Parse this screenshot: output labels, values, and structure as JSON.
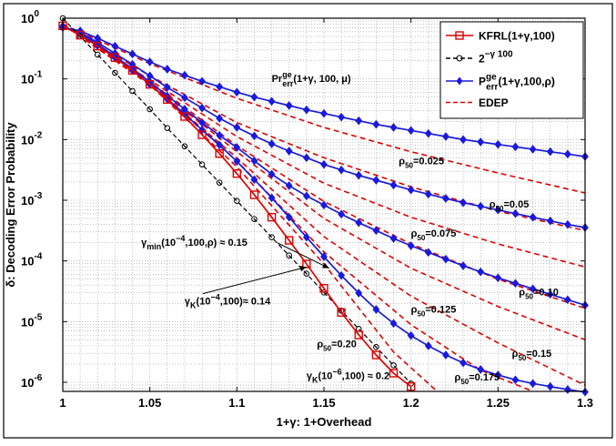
{
  "chart_data": {
    "type": "line",
    "xlabel": "1+γ: 1+Overhead",
    "ylabel": "δ: Decoding Error Probability",
    "xlim": [
      1.0,
      1.3
    ],
    "ylim_log10": [
      -6.15,
      0.0
    ],
    "y_scale": "log",
    "grid": true,
    "x_ticks": [
      "1",
      "1.05",
      "1.1",
      "1.15",
      "1.2",
      "1.25",
      "1.3"
    ],
    "y_ticks": [
      {
        "base": "10",
        "exp": "0"
      },
      {
        "base": "10",
        "exp": "-1"
      },
      {
        "base": "10",
        "exp": "-2"
      },
      {
        "base": "10",
        "exp": "-3"
      },
      {
        "base": "10",
        "exp": "-4"
      },
      {
        "base": "10",
        "exp": "-5"
      },
      {
        "base": "10",
        "exp": "-6"
      }
    ],
    "legend": {
      "position": "top-right",
      "entries": [
        {
          "label": "KFRL(1+γ,100)",
          "color": "#e00000",
          "marker": "square",
          "style": "solid"
        },
        {
          "label": "2",
          "sup": "−γ 100",
          "color": "#000000",
          "marker": "circle",
          "style": "dashed"
        },
        {
          "label": "P",
          "sup": "ge",
          "sub": "err",
          "tail": "(1+γ,100,ρ)",
          "color": "#1a1adb",
          "marker": "diamond",
          "style": "solid"
        },
        {
          "label": "EDEP",
          "color": "#e00000",
          "marker": "none",
          "style": "dashed"
        }
      ]
    },
    "series": [
      {
        "kind": "kfrl",
        "x": [
          1.0,
          1.01,
          1.02,
          1.03,
          1.04,
          1.05,
          1.06,
          1.07,
          1.08,
          1.09,
          1.1,
          1.11,
          1.12,
          1.13,
          1.14,
          1.15,
          1.16,
          1.17,
          1.18,
          1.19,
          1.2
        ],
        "log10_y": [
          -0.125,
          -0.28,
          -0.46,
          -0.65,
          -0.86,
          -1.09,
          -1.34,
          -1.62,
          -1.92,
          -2.23,
          -2.56,
          -2.91,
          -3.28,
          -3.66,
          -4.05,
          -4.45,
          -4.85,
          -5.22,
          -5.55,
          -5.85,
          -6.07
        ]
      },
      {
        "kind": "bound",
        "x": [
          1.0,
          1.01,
          1.02,
          1.03,
          1.04,
          1.05,
          1.06,
          1.07,
          1.08,
          1.09,
          1.1,
          1.11,
          1.12,
          1.13,
          1.14,
          1.15,
          1.16,
          1.17,
          1.18,
          1.19,
          1.2
        ],
        "log10_y": [
          0.0,
          -0.3,
          -0.6,
          -0.9,
          -1.2,
          -1.5,
          -1.81,
          -2.11,
          -2.41,
          -2.71,
          -3.01,
          -3.31,
          -3.61,
          -3.91,
          -4.21,
          -4.52,
          -4.82,
          -5.12,
          -5.42,
          -5.72,
          -6.02
        ]
      },
      {
        "kind": "pge",
        "rho": "0.025",
        "x": [
          1.0,
          1.01,
          1.02,
          1.03,
          1.04,
          1.05,
          1.06,
          1.07,
          1.08,
          1.09,
          1.1,
          1.11,
          1.12,
          1.13,
          1.14,
          1.15,
          1.16,
          1.17,
          1.18,
          1.19,
          1.2,
          1.21,
          1.22,
          1.23,
          1.24,
          1.25,
          1.26,
          1.27,
          1.28,
          1.29,
          1.3
        ],
        "log10_y": [
          -0.15,
          -0.21,
          -0.33,
          -0.46,
          -0.59,
          -0.72,
          -0.84,
          -0.94,
          -1.04,
          -1.13,
          -1.22,
          -1.3,
          -1.37,
          -1.44,
          -1.51,
          -1.57,
          -1.63,
          -1.69,
          -1.75,
          -1.8,
          -1.85,
          -1.9,
          -1.95,
          -2.0,
          -2.04,
          -2.08,
          -2.12,
          -2.16,
          -2.2,
          -2.24,
          -2.28
        ]
      },
      {
        "kind": "pge",
        "rho": "0.05",
        "x": [
          1.0,
          1.01,
          1.02,
          1.03,
          1.04,
          1.05,
          1.06,
          1.07,
          1.08,
          1.09,
          1.1,
          1.11,
          1.12,
          1.13,
          1.14,
          1.15,
          1.16,
          1.17,
          1.18,
          1.19,
          1.2,
          1.21,
          1.22,
          1.23,
          1.24,
          1.25,
          1.26,
          1.27,
          1.28,
          1.29,
          1.3
        ],
        "log10_y": [
          -0.15,
          -0.23,
          -0.4,
          -0.58,
          -0.76,
          -0.95,
          -1.14,
          -1.31,
          -1.48,
          -1.65,
          -1.8,
          -1.94,
          -2.07,
          -2.19,
          -2.3,
          -2.41,
          -2.5,
          -2.59,
          -2.67,
          -2.75,
          -2.83,
          -2.9,
          -2.97,
          -3.04,
          -3.1,
          -3.16,
          -3.22,
          -3.28,
          -3.34,
          -3.4,
          -3.45
        ]
      },
      {
        "kind": "pge",
        "rho": "0.10",
        "x": [
          1.0,
          1.01,
          1.02,
          1.03,
          1.04,
          1.05,
          1.06,
          1.07,
          1.08,
          1.09,
          1.1,
          1.11,
          1.12,
          1.13,
          1.14,
          1.15,
          1.16,
          1.17,
          1.18,
          1.19,
          1.2,
          1.21,
          1.22,
          1.23,
          1.24,
          1.25,
          1.26,
          1.27,
          1.28,
          1.29,
          1.3
        ],
        "log10_y": [
          -0.15,
          -0.25,
          -0.43,
          -0.63,
          -0.83,
          -1.05,
          -1.28,
          -1.5,
          -1.72,
          -1.93,
          -2.13,
          -2.35,
          -2.57,
          -2.76,
          -2.93,
          -3.08,
          -3.23,
          -3.37,
          -3.5,
          -3.63,
          -3.75,
          -3.86,
          -3.97,
          -4.08,
          -4.18,
          -4.28,
          -4.37,
          -4.46,
          -4.55,
          -4.64,
          -4.73
        ]
      },
      {
        "kind": "pge",
        "rho": "0.175",
        "x": [
          1.0,
          1.01,
          1.02,
          1.03,
          1.04,
          1.05,
          1.06,
          1.07,
          1.08,
          1.09,
          1.1,
          1.11,
          1.12,
          1.13,
          1.14,
          1.15,
          1.16,
          1.17,
          1.18,
          1.19,
          1.2,
          1.21,
          1.22,
          1.23,
          1.24,
          1.25,
          1.26,
          1.27,
          1.28,
          1.29,
          1.3
        ],
        "log10_y": [
          -0.13,
          -0.26,
          -0.45,
          -0.65,
          -0.86,
          -1.09,
          -1.33,
          -1.58,
          -1.84,
          -2.09,
          -2.36,
          -2.66,
          -2.96,
          -3.28,
          -3.61,
          -3.93,
          -4.24,
          -4.53,
          -4.8,
          -5.03,
          -5.23,
          -5.4,
          -5.55,
          -5.68,
          -5.79,
          -5.88,
          -5.96,
          -6.02,
          -6.07,
          -6.12,
          -6.16
        ]
      },
      {
        "kind": "edep",
        "rho": "0.025",
        "x": [
          1.0,
          1.05,
          1.1,
          1.15,
          1.2,
          1.25,
          1.3
        ],
        "log10_y": [
          -0.1,
          -0.75,
          -1.32,
          -1.8,
          -2.2,
          -2.55,
          -2.88
        ]
      },
      {
        "kind": "edep",
        "rho": "0.05",
        "x": [
          1.0,
          1.05,
          1.1,
          1.15,
          1.2,
          1.25,
          1.3
        ],
        "log10_y": [
          -0.1,
          -0.95,
          -1.72,
          -2.3,
          -2.78,
          -3.18,
          -3.5
        ]
      },
      {
        "kind": "edep",
        "rho": "0.075",
        "x": [
          1.0,
          1.05,
          1.1,
          1.15,
          1.2,
          1.25,
          1.3
        ],
        "log10_y": [
          -0.1,
          -1.02,
          -1.95,
          -2.72,
          -3.28,
          -3.72,
          -4.1
        ]
      },
      {
        "kind": "edep",
        "rho": "0.10",
        "x": [
          1.0,
          1.05,
          1.1,
          1.15,
          1.2,
          1.25,
          1.3
        ],
        "log10_y": [
          -0.1,
          -1.05,
          -2.1,
          -3.02,
          -3.72,
          -4.3,
          -4.78
        ]
      },
      {
        "kind": "edep",
        "rho": "0.125",
        "x": [
          1.0,
          1.05,
          1.1,
          1.15,
          1.2,
          1.25,
          1.3
        ],
        "log10_y": [
          -0.1,
          -1.07,
          -2.2,
          -3.3,
          -4.12,
          -4.75,
          -5.3
        ]
      },
      {
        "kind": "edep",
        "rho": "0.15",
        "x": [
          1.0,
          1.05,
          1.1,
          1.15,
          1.2,
          1.25,
          1.3
        ],
        "log10_y": [
          -0.1,
          -1.08,
          -2.3,
          -3.6,
          -4.58,
          -5.35,
          -6.05
        ]
      },
      {
        "kind": "edep",
        "rho": "0.175",
        "x": [
          1.0,
          1.05,
          1.1,
          1.15,
          1.2,
          1.24,
          1.27
        ],
        "log10_y": [
          -0.1,
          -1.09,
          -2.35,
          -3.85,
          -5.05,
          -5.8,
          -6.15
        ]
      },
      {
        "kind": "edep",
        "rho": "0.20",
        "x": [
          1.0,
          1.05,
          1.1,
          1.15,
          1.19,
          1.215
        ],
        "log10_y": [
          -0.1,
          -1.1,
          -2.45,
          -4.05,
          -5.5,
          -6.15
        ]
      }
    ],
    "annotations": {
      "pr_label": {
        "base": "Pr",
        "sup": "ge",
        "sub": "err",
        "tail": "(1+γ, 100, μ)",
        "x": 1.12,
        "log10_y": -1.05
      },
      "rho_labels": [
        {
          "value": "0.025",
          "x": 1.193,
          "log10_y": -2.41
        },
        {
          "value": "0.05",
          "x": 1.245,
          "log10_y": -3.12
        },
        {
          "value": "0.075",
          "x": 1.2,
          "log10_y": -3.6
        },
        {
          "value": "0.10",
          "x": 1.262,
          "log10_y": -4.57
        },
        {
          "value": "0.125",
          "x": 1.2,
          "log10_y": -4.85
        },
        {
          "value": "0.20",
          "x": 1.146,
          "log10_y": -5.42
        },
        {
          "value": "0.15",
          "x": 1.258,
          "log10_y": -5.58
        },
        {
          "value": "0.175",
          "x": 1.225,
          "log10_y": -5.97
        }
      ],
      "gamma_min": {
        "base": "γ",
        "sub": "min",
        "tail": "(10",
        "exp": "−4",
        "tail2": ",100,ρ) ≈ 0.15",
        "x": 1.045,
        "log10_y": -3.75,
        "target_x": 1.153,
        "target_log10_y": -4.12
      },
      "gamma_k4": {
        "base": "γ",
        "sub": "K",
        "tail": "(10",
        "exp": "−4",
        "tail2": ",100)≈ 0.14",
        "x": 1.07,
        "log10_y": -4.72,
        "target_x": 1.14,
        "target_log10_y": -4.1
      },
      "gamma_k6": {
        "base": "γ",
        "sub": "K",
        "tail": "(10",
        "exp": "−6",
        "tail2": ",100) ≈ 0.2",
        "x": 1.14,
        "log10_y": -5.95,
        "target_x": 1.197,
        "target_log10_y": -6.02
      }
    },
    "colors": {
      "red": "#e00000",
      "blue": "#1a1adb",
      "black": "#000000"
    }
  }
}
